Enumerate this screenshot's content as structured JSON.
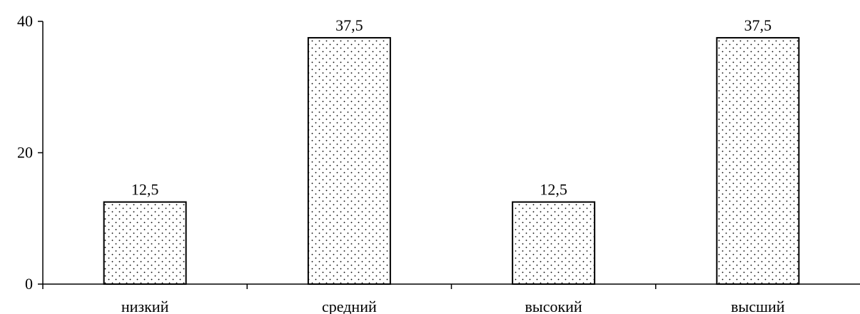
{
  "chart_data": {
    "type": "bar",
    "categories": [
      "низкий",
      "средний",
      "высокий",
      "высший"
    ],
    "values": [
      12.5,
      37.5,
      12.5,
      37.5
    ],
    "data_labels": [
      "12,5",
      "37,5",
      "12,5",
      "37,5"
    ],
    "y_ticks": [
      0,
      20,
      40
    ],
    "y_tick_labels": [
      "0",
      "20",
      "40"
    ],
    "ylim": [
      0,
      40
    ],
    "grid": false,
    "legend": "none",
    "bar_fill": "dotted pattern",
    "colors": {
      "bar_fill": "#ffffff",
      "bar_stroke": "#000000",
      "dots": "#000000",
      "axis": "#000000"
    }
  }
}
